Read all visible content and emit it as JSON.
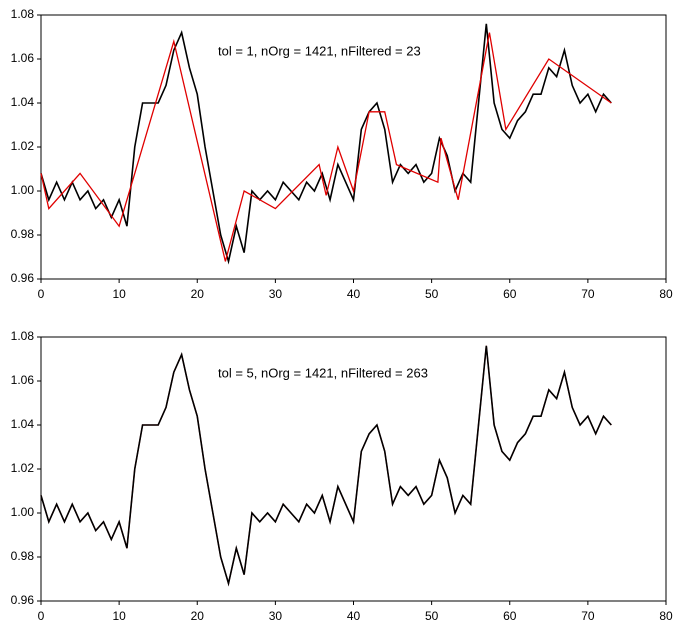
{
  "chart_data": [
    {
      "type": "line",
      "annotation": "tol = 1, nOrg = 1421, nFiltered = 23",
      "xlim": [
        0,
        80
      ],
      "xticks": [
        0,
        10,
        20,
        30,
        40,
        50,
        60,
        70,
        80
      ],
      "ylim": [
        0.96,
        1.08
      ],
      "yticks": [
        0.96,
        0.98,
        {
          "value": 1,
          "label": "1.00"
        },
        1.02,
        1.04,
        1.06,
        1.08
      ],
      "series": [
        {
          "color": "#000000",
          "x": [
            0,
            1,
            2,
            3,
            4,
            5,
            6,
            7,
            8,
            9,
            10,
            11,
            12,
            13,
            14,
            15,
            16,
            17,
            18,
            19,
            20,
            21,
            22,
            23,
            24,
            25,
            26,
            27,
            28,
            29,
            30,
            31,
            32,
            33,
            34,
            35,
            36,
            37,
            38,
            39,
            40,
            41,
            42,
            43,
            44,
            45,
            46,
            47,
            48,
            49,
            50,
            51,
            52,
            53,
            54,
            55,
            56,
            57,
            58,
            59,
            60,
            61,
            62,
            63,
            64,
            65,
            66,
            67,
            68,
            69,
            70,
            71,
            72,
            73
          ],
          "values": [
            1.008,
            0.996,
            1.004,
            0.996,
            1.004,
            0.996,
            1.0,
            0.992,
            0.996,
            0.988,
            0.996,
            0.984,
            1.02,
            1.04,
            1.04,
            1.04,
            1.048,
            1.064,
            1.072,
            1.056,
            1.044,
            1.02,
            1.0,
            0.98,
            0.968,
            0.984,
            0.972,
            1.0,
            0.996,
            1.0,
            0.996,
            1.004,
            1.0,
            0.996,
            1.004,
            1.0,
            1.008,
            0.996,
            1.012,
            1.004,
            0.996,
            1.028,
            1.036,
            1.04,
            1.028,
            1.004,
            1.012,
            1.008,
            1.012,
            1.004,
            1.008,
            1.024,
            1.016,
            1.0,
            1.008,
            1.004,
            1.04,
            1.076,
            1.04,
            1.028,
            1.024,
            1.032,
            1.036,
            1.044,
            1.044,
            1.056,
            1.052,
            1.064,
            1.048,
            1.04,
            1.044,
            1.036,
            1.044,
            1.04
          ]
        },
        {
          "color": "#e00000",
          "x": [
            0,
            1,
            5,
            10,
            12,
            17,
            23.6,
            26,
            30,
            35.6,
            36.5,
            38,
            40,
            42,
            44,
            45.5,
            50.8,
            51.2,
            53.4,
            57.4,
            59.5,
            65,
            73
          ],
          "values": [
            1.008,
            0.992,
            1.008,
            0.984,
            1.008,
            1.068,
            0.968,
            1.0,
            0.992,
            1.012,
            0.998,
            1.02,
            1.0,
            1.036,
            1.036,
            1.012,
            1.004,
            1.024,
            0.996,
            1.072,
            1.028,
            1.06,
            1.04
          ]
        }
      ]
    },
    {
      "type": "line",
      "annotation": "tol = 5, nOrg = 1421, nFiltered = 263",
      "xlim": [
        0,
        80
      ],
      "xticks": [
        0,
        10,
        20,
        30,
        40,
        50,
        60,
        70,
        80
      ],
      "ylim": [
        0.96,
        1.08
      ],
      "yticks": [
        0.96,
        0.98,
        {
          "value": 1,
          "label": "1.00"
        },
        1.02,
        1.04,
        1.06,
        1.08
      ],
      "series": [
        {
          "color": "#e00000",
          "x": [
            0,
            1,
            2,
            3,
            4,
            5,
            6,
            7,
            8,
            9,
            10,
            11,
            12,
            13,
            14,
            15,
            16,
            17,
            18,
            19,
            20,
            21,
            22,
            23,
            24,
            25,
            26,
            27,
            28,
            29,
            30,
            31,
            32,
            33,
            34,
            35,
            36,
            37,
            38,
            39,
            40,
            41,
            42,
            43,
            44,
            45,
            46,
            47,
            48,
            49,
            50,
            51,
            52,
            53,
            54,
            55,
            56,
            57,
            58,
            59,
            60,
            61,
            62,
            63,
            64,
            65,
            66,
            67,
            68,
            69,
            70,
            71,
            72,
            73
          ],
          "values": [
            1.008,
            0.996,
            1.004,
            0.996,
            1.004,
            0.996,
            1.0,
            0.992,
            0.996,
            0.988,
            0.996,
            0.984,
            1.02,
            1.04,
            1.04,
            1.04,
            1.048,
            1.064,
            1.072,
            1.056,
            1.044,
            1.02,
            1.0,
            0.98,
            0.968,
            0.984,
            0.972,
            1.0,
            0.996,
            1.0,
            0.996,
            1.004,
            1.0,
            0.996,
            1.004,
            1.0,
            1.008,
            0.996,
            1.012,
            1.004,
            0.996,
            1.028,
            1.036,
            1.04,
            1.028,
            1.004,
            1.012,
            1.008,
            1.012,
            1.004,
            1.008,
            1.024,
            1.016,
            1.0,
            1.008,
            1.004,
            1.04,
            1.076,
            1.04,
            1.028,
            1.024,
            1.032,
            1.036,
            1.044,
            1.044,
            1.056,
            1.052,
            1.064,
            1.048,
            1.04,
            1.044,
            1.036,
            1.044,
            1.04
          ]
        },
        {
          "color": "#000000",
          "x": [
            0,
            1,
            2,
            3,
            4,
            5,
            6,
            7,
            8,
            9,
            10,
            11,
            12,
            13,
            14,
            15,
            16,
            17,
            18,
            19,
            20,
            21,
            22,
            23,
            24,
            25,
            26,
            27,
            28,
            29,
            30,
            31,
            32,
            33,
            34,
            35,
            36,
            37,
            38,
            39,
            40,
            41,
            42,
            43,
            44,
            45,
            46,
            47,
            48,
            49,
            50,
            51,
            52,
            53,
            54,
            55,
            56,
            57,
            58,
            59,
            60,
            61,
            62,
            63,
            64,
            65,
            66,
            67,
            68,
            69,
            70,
            71,
            72,
            73
          ],
          "values": [
            1.008,
            0.996,
            1.004,
            0.996,
            1.004,
            0.996,
            1.0,
            0.992,
            0.996,
            0.988,
            0.996,
            0.984,
            1.02,
            1.04,
            1.04,
            1.04,
            1.048,
            1.064,
            1.072,
            1.056,
            1.044,
            1.02,
            1.0,
            0.98,
            0.968,
            0.984,
            0.972,
            1.0,
            0.996,
            1.0,
            0.996,
            1.004,
            1.0,
            0.996,
            1.004,
            1.0,
            1.008,
            0.996,
            1.012,
            1.004,
            0.996,
            1.028,
            1.036,
            1.04,
            1.028,
            1.004,
            1.012,
            1.008,
            1.012,
            1.004,
            1.008,
            1.024,
            1.016,
            1.0,
            1.008,
            1.004,
            1.04,
            1.076,
            1.04,
            1.028,
            1.024,
            1.032,
            1.036,
            1.044,
            1.044,
            1.056,
            1.052,
            1.064,
            1.048,
            1.04,
            1.044,
            1.036,
            1.044,
            1.04
          ]
        }
      ]
    }
  ]
}
